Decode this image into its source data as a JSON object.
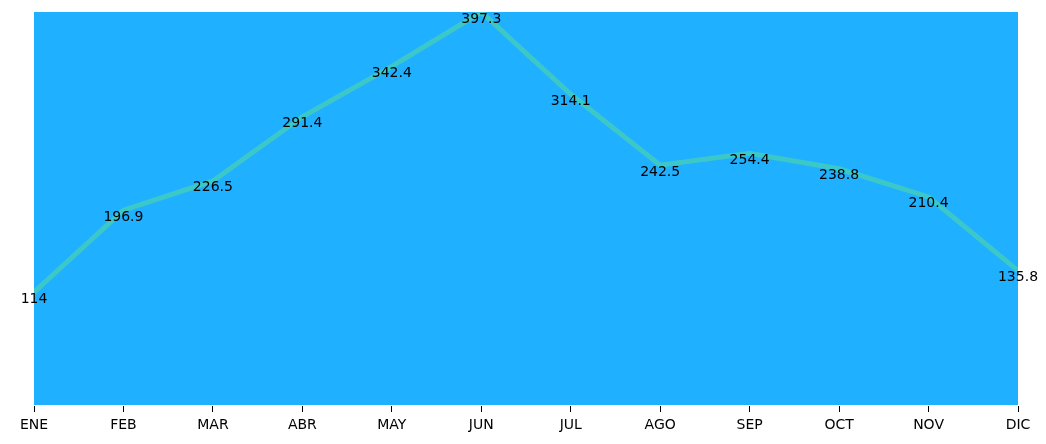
{
  "chart_data": {
    "type": "line",
    "categories": [
      "ENE",
      "FEB",
      "MAR",
      "ABR",
      "MAY",
      "JUN",
      "JUL",
      "AGO",
      "SEP",
      "OCT",
      "NOV",
      "DIC"
    ],
    "series": [
      {
        "color": "#3cc8c8",
        "values": [
          114,
          196.9,
          226.5,
          291.4,
          342.4,
          397.3,
          314.1,
          242.5,
          254.4,
          238.8,
          210.4,
          135.8
        ]
      }
    ],
    "ylim": [
      0,
      397.3
    ],
    "data_labels": true,
    "grid": false,
    "legend": false,
    "marker": "none",
    "line_style": "solid",
    "tick_labels": "x"
  }
}
